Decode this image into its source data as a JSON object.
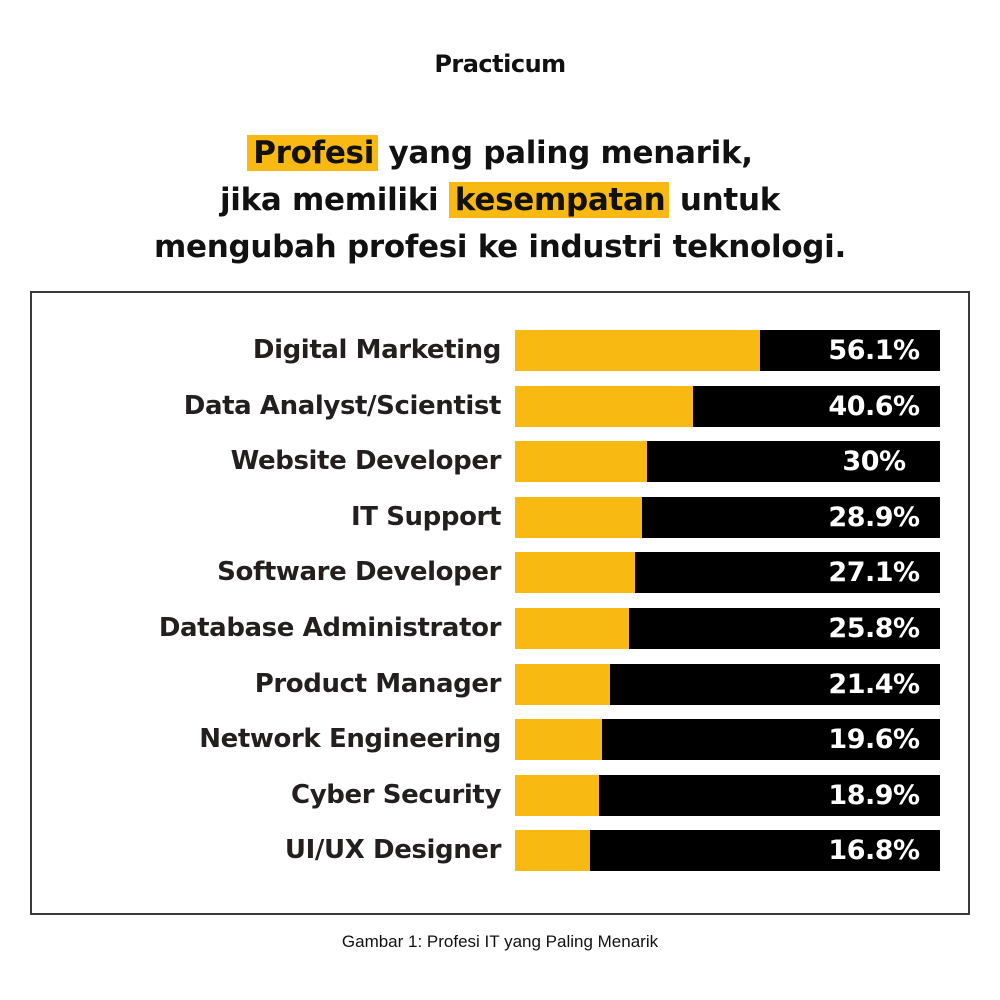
{
  "brand": "Practicum",
  "headline": {
    "line1": {
      "highlight": "Profesi",
      "rest": " yang paling menarik,"
    },
    "line2": {
      "before": "jika memiliki ",
      "highlight": "kesempatan",
      "after": " untuk"
    },
    "line3": "mengubah profesi ke industri teknologi."
  },
  "caption": "Gambar 1: Profesi IT yang Paling Menarik",
  "colors": {
    "accent": "#F9B913",
    "bar_background": "#000000",
    "label_text": "#231F1F",
    "value_text": "#FFFFFF",
    "border": "#3A3A3A"
  },
  "chart_data": {
    "type": "bar",
    "orientation": "horizontal",
    "title": "Profesi yang paling menarik, jika memiliki kesempatan untuk mengubah profesi ke industri teknologi.",
    "caption": "Gambar 1: Profesi IT yang Paling Menarik",
    "xlabel": "",
    "ylabel": "",
    "xlim": [
      0,
      100
    ],
    "grid": false,
    "legend": "none",
    "categories": [
      "Digital Marketing",
      "Data Analyst/Scientist",
      "Website Developer",
      "IT Support",
      "Software Developer",
      "Database Administrator",
      "Product Manager",
      "Network Engineering",
      "Cyber Security",
      "UI/UX Designer"
    ],
    "values": [
      56.1,
      40.6,
      30,
      28.9,
      27.1,
      25.8,
      21.4,
      19.6,
      18.9,
      16.8
    ],
    "value_labels": [
      "56.1%",
      "40.6%",
      "30%",
      "28.9%",
      "27.1%",
      "25.8%",
      "21.4%",
      "19.6%",
      "18.9%",
      "16.8%"
    ],
    "unit": "%"
  }
}
